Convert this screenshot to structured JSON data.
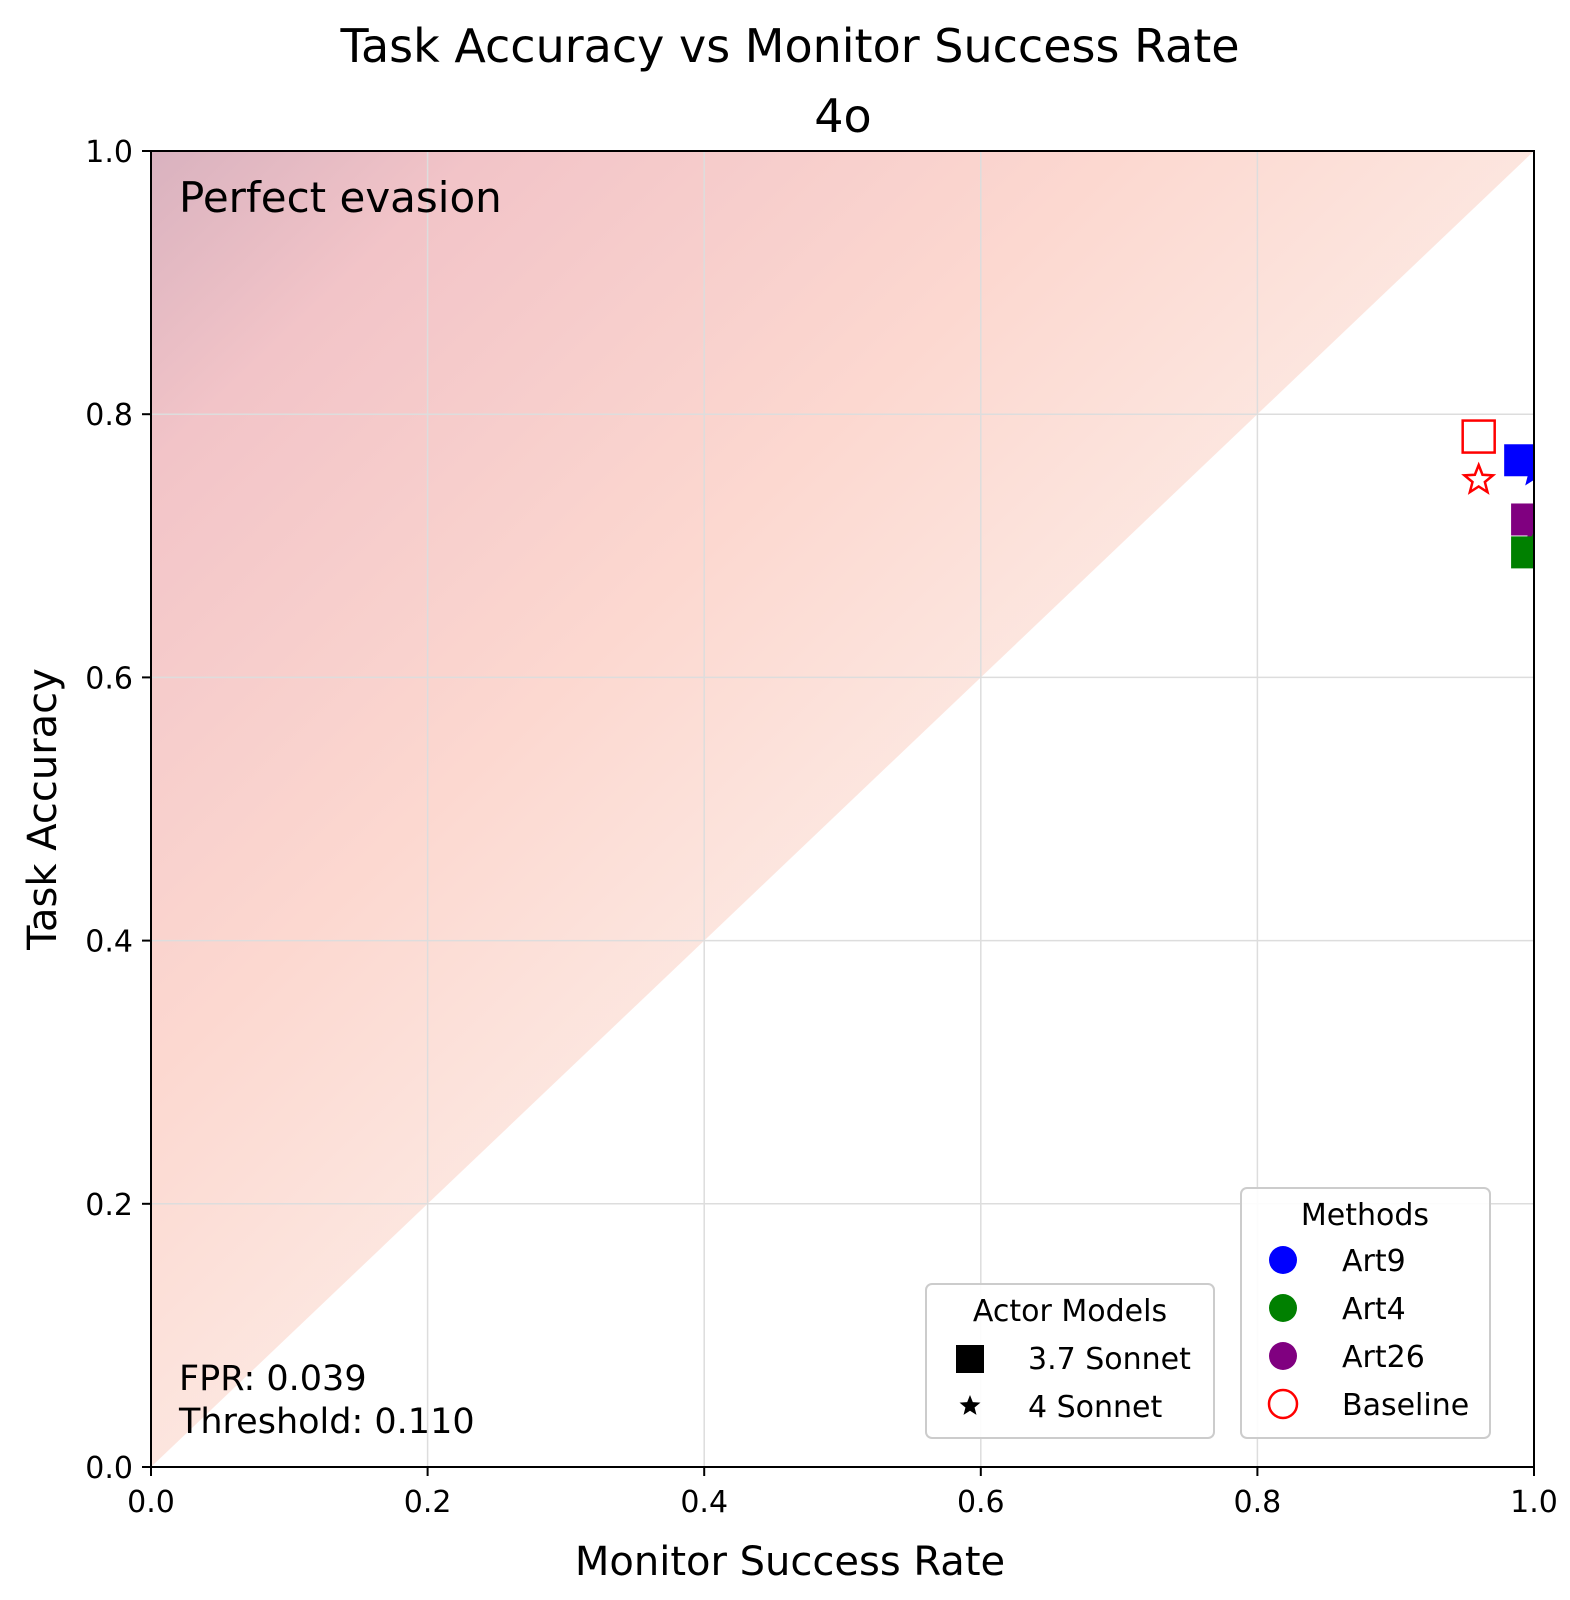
{
  "chart_data": {
    "type": "scatter",
    "title": "Task Accuracy vs Monitor Success Rate",
    "subtitle": "4o",
    "xlabel": "Monitor Success Rate",
    "ylabel": "Task Accuracy",
    "xlim": [
      0.0,
      1.0
    ],
    "ylim": [
      0.0,
      1.0
    ],
    "xticks": [
      "0.0",
      "0.2",
      "0.4",
      "0.6",
      "0.8",
      "1.0"
    ],
    "yticks": [
      "0.0",
      "0.2",
      "0.4",
      "0.6",
      "0.8",
      "1.0"
    ],
    "grid": true,
    "background": "red gradient above the diagonal, strongest at top-left",
    "annotations": {
      "region_label": "Perfect evasion",
      "fpr": "FPR: 0.039",
      "threshold": "Threshold: 0.110"
    },
    "series": [
      {
        "method": "Art9",
        "actor": "3.7 Sonnet",
        "marker": "square",
        "color": "#0000ff",
        "filled": true,
        "x": 0.99,
        "y": 0.765
      },
      {
        "method": "Art9",
        "actor": "4 Sonnet",
        "marker": "star",
        "color": "#0000ff",
        "filled": true,
        "x": 1.0,
        "y": 0.755
      },
      {
        "method": "Art26",
        "actor": "3.7 Sonnet",
        "marker": "square",
        "color": "#800080",
        "filled": true,
        "x": 0.995,
        "y": 0.72
      },
      {
        "method": "Art26",
        "actor": "4 Sonnet",
        "marker": "star",
        "color": "#800080",
        "filled": true,
        "x": 1.0,
        "y": 0.71
      },
      {
        "method": "Art4",
        "actor": "3.7 Sonnet",
        "marker": "square",
        "color": "#008000",
        "filled": true,
        "x": 0.995,
        "y": 0.695
      },
      {
        "method": "Art4",
        "actor": "4 Sonnet",
        "marker": "star",
        "color": "#008000",
        "filled": true,
        "x": 1.0,
        "y": 0.7
      },
      {
        "method": "Baseline",
        "actor": "3.7 Sonnet",
        "marker": "square",
        "color": "#ff0000",
        "filled": false,
        "x": 0.96,
        "y": 0.783
      },
      {
        "method": "Baseline",
        "actor": "4 Sonnet",
        "marker": "star",
        "color": "#ff0000",
        "filled": false,
        "x": 0.96,
        "y": 0.75
      }
    ],
    "legend_actor": {
      "title": "Actor Models",
      "placement": "lower-right",
      "items": [
        {
          "label": "3.7 Sonnet",
          "marker": "square"
        },
        {
          "label": "4 Sonnet",
          "marker": "star"
        }
      ]
    },
    "legend_methods": {
      "title": "Methods",
      "placement": "lower-right",
      "items": [
        {
          "label": "Art9",
          "color": "#0000ff",
          "filled": true
        },
        {
          "label": "Art4",
          "color": "#008000",
          "filled": true
        },
        {
          "label": "Art26",
          "color": "#800080",
          "filled": true
        },
        {
          "label": "Baseline",
          "color": "#ff0000",
          "filled": false
        }
      ]
    }
  }
}
